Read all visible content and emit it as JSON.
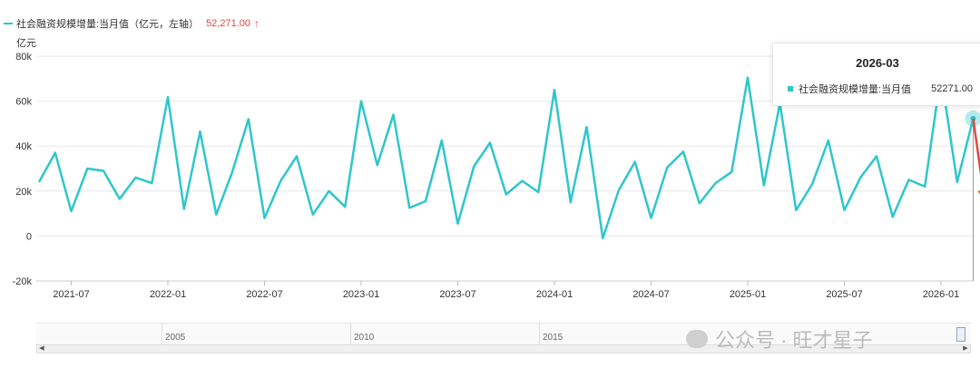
{
  "legend": {
    "series_label": "社会融资规模增量:当月值（亿元，左轴）",
    "latest_value": "52,271.00",
    "arrow": "↑",
    "line_color": "#2ec6cb",
    "value_color": "#e0483e"
  },
  "tooltip": {
    "date": "2026-03",
    "series_label": "社会融资规模增量:当月值",
    "value": "52271.00"
  },
  "navigator": {
    "labels": [
      "2005",
      "2010",
      "2015"
    ]
  },
  "watermark": {
    "text": "公众号 · 旺才星子"
  },
  "chart_data": {
    "type": "line",
    "y_unit": "亿元",
    "ylim": [
      -20000,
      80000
    ],
    "y_ticks": [
      80000,
      60000,
      40000,
      20000,
      0,
      -20000
    ],
    "y_tick_labels": [
      "80k",
      "60k",
      "40k",
      "20k",
      "0",
      "-20k"
    ],
    "x_tick_labels": [
      "2021-07",
      "2022-01",
      "2022-07",
      "2023-01",
      "2023-07",
      "2024-01",
      "2024-07",
      "2025-01",
      "2025-07",
      "2026-01"
    ],
    "x_tick_dates": [
      "2021-07",
      "2022-01",
      "2022-07",
      "2023-01",
      "2023-07",
      "2024-01",
      "2024-07",
      "2025-01",
      "2025-07",
      "2026-01"
    ],
    "grid": true,
    "series": [
      {
        "name": "社会融资规模增量:当月值",
        "color": "#2ec6cb",
        "x": [
          "2021-05",
          "2021-06",
          "2021-07",
          "2021-08",
          "2021-09",
          "2021-10",
          "2021-11",
          "2021-12",
          "2022-01",
          "2022-02",
          "2022-03",
          "2022-04",
          "2022-05",
          "2022-06",
          "2022-07",
          "2022-08",
          "2022-09",
          "2022-10",
          "2022-11",
          "2022-12",
          "2023-01",
          "2023-02",
          "2023-03",
          "2023-04",
          "2023-05",
          "2023-06",
          "2023-07",
          "2023-08",
          "2023-09",
          "2023-10",
          "2023-11",
          "2023-12",
          "2024-01",
          "2024-02",
          "2024-03",
          "2024-04",
          "2024-05",
          "2024-06",
          "2024-07",
          "2024-08",
          "2024-09",
          "2024-10",
          "2024-11",
          "2024-12",
          "2025-01",
          "2025-02",
          "2025-03",
          "2025-04",
          "2025-05",
          "2025-06",
          "2025-07",
          "2025-08",
          "2025-09",
          "2025-10",
          "2025-11",
          "2025-12",
          "2026-01",
          "2026-02",
          "2026-03"
        ],
        "values": [
          24000,
          37000,
          11000,
          30000,
          29000,
          16500,
          26000,
          23500,
          61800,
          12000,
          46500,
          9500,
          28500,
          52000,
          8000,
          24500,
          35500,
          9500,
          20000,
          13000,
          60000,
          31500,
          54000,
          12500,
          15500,
          42500,
          5500,
          31000,
          41500,
          18500,
          24500,
          19500,
          65000,
          15000,
          48500,
          -1000,
          20500,
          33000,
          8000,
          30500,
          37500,
          14500,
          23500,
          28500,
          70500,
          22500,
          59000,
          11500,
          23000,
          42500,
          11500,
          26000,
          35500,
          8500,
          25000,
          22000,
          72000,
          24000,
          52271
        ]
      }
    ],
    "highlight": {
      "x": "2026-03",
      "value": 52271
    }
  }
}
